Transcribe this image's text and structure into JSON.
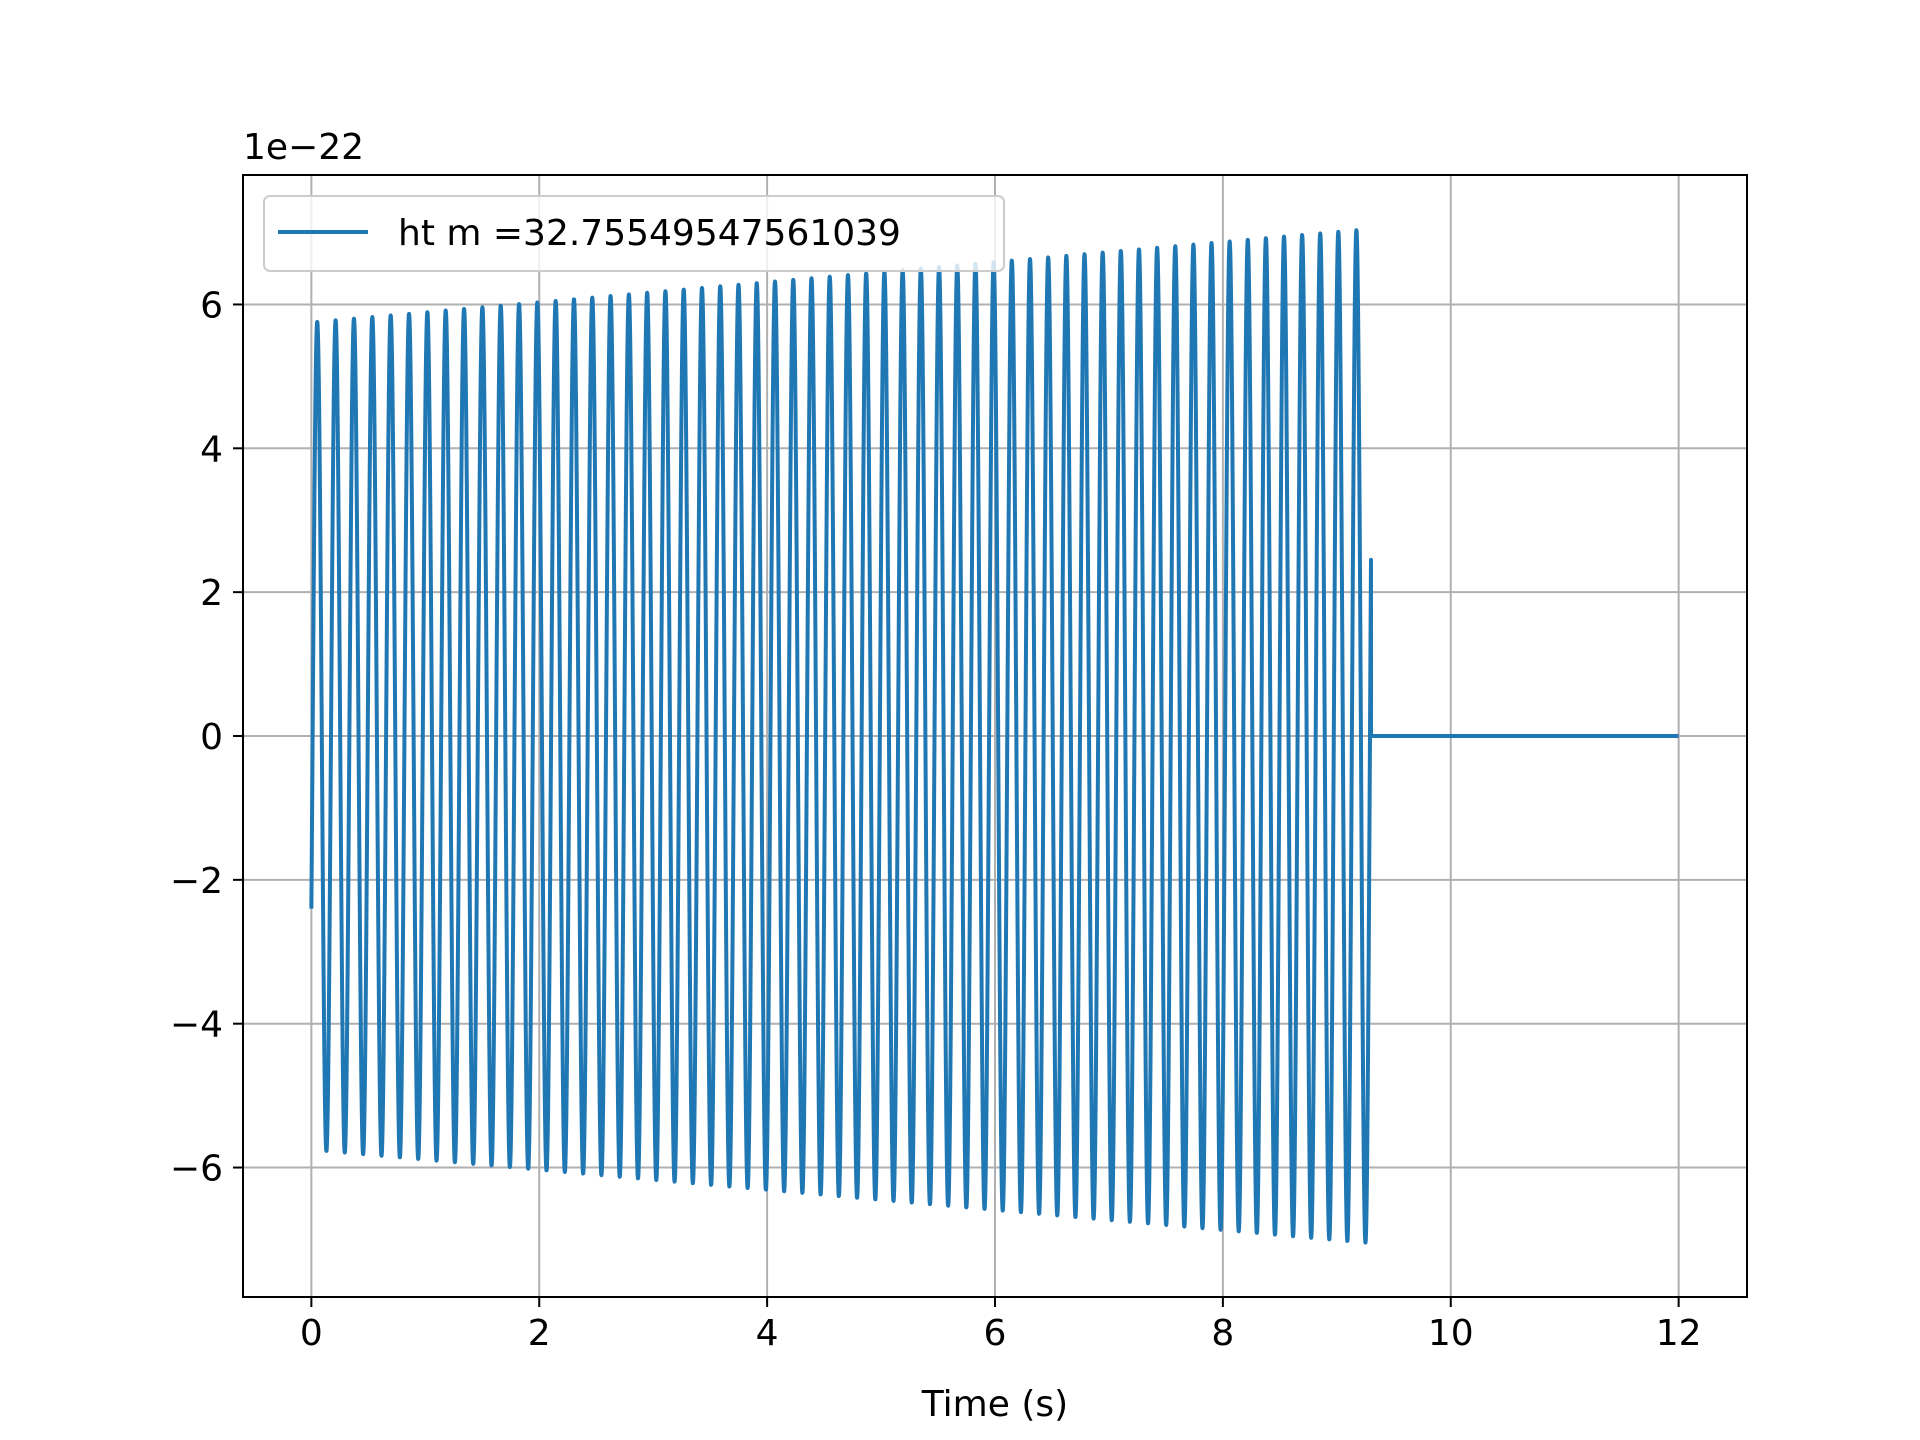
{
  "chart_data": {
    "type": "line",
    "title": "",
    "xlabel": "Time (s)",
    "ylabel": "",
    "y_offset_label": "1e−22",
    "xlim": [
      -0.6,
      12.6
    ],
    "ylim": [
      -7.8,
      7.8
    ],
    "x_ticks": [
      0,
      2,
      4,
      6,
      8,
      10,
      12
    ],
    "x_tick_labels": [
      "0",
      "2",
      "4",
      "6",
      "8",
      "10",
      "12"
    ],
    "y_ticks": [
      -6,
      -4,
      -2,
      0,
      2,
      4,
      6
    ],
    "y_tick_labels": [
      "−6",
      "−4",
      "−2",
      "0",
      "2",
      "4",
      "6"
    ],
    "grid": true,
    "legend_position": "top-left",
    "series": [
      {
        "name": "ht m =32.75549547561039",
        "color": "#1f77b4",
        "signal": {
          "kind": "chirp",
          "t_start": 0,
          "t_end": 9.3,
          "t_max": 12,
          "amplitude_start": 5.75,
          "amplitude_end": 7.05,
          "frequency_start": 6.2,
          "frequency_end": 6.3,
          "initial_value": -2.4,
          "after_end_value": 0
        }
      }
    ]
  }
}
